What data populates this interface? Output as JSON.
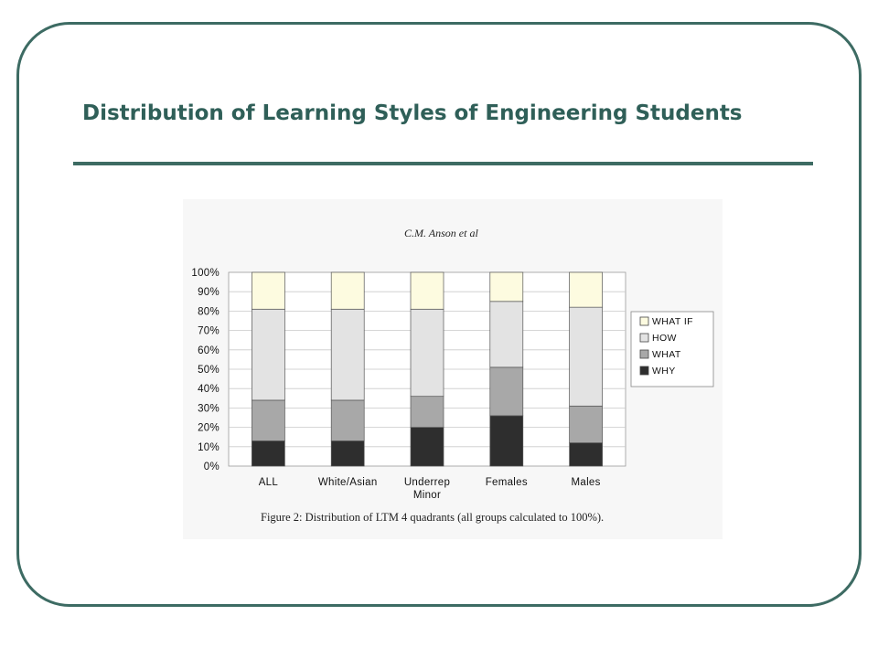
{
  "slide": {
    "title": "Distribution of Learning Styles of Engineering Students",
    "accent_color": "#3d6b63",
    "title_color": "#2f5f58"
  },
  "figure": {
    "author": "C.M. Anson et al",
    "caption": "Figure 2: Distribution of LTM 4 quadrants (all groups calculated to 100%)."
  },
  "chart_data": {
    "type": "bar",
    "stacked": true,
    "title": "",
    "xlabel": "",
    "ylabel": "",
    "ylim": [
      0,
      100
    ],
    "y_ticks": [
      "0%",
      "10%",
      "20%",
      "30%",
      "40%",
      "50%",
      "60%",
      "70%",
      "80%",
      "90%",
      "100%"
    ],
    "grid": true,
    "legend_position": "right",
    "categories": [
      "ALL",
      "White/Asian",
      "Underrep\nMinor",
      "Females",
      "Males"
    ],
    "series": [
      {
        "name": "WHY",
        "color": "#2e2e2e",
        "values": [
          13,
          13,
          20,
          26,
          12
        ]
      },
      {
        "name": "WHAT",
        "color": "#a8a8a8",
        "values": [
          21,
          21,
          16,
          25,
          19
        ]
      },
      {
        "name": "HOW",
        "color": "#e3e3e3",
        "values": [
          47,
          47,
          45,
          34,
          51
        ]
      },
      {
        "name": "WHAT IF",
        "color": "#fdfbe0",
        "values": [
          19,
          19,
          19,
          15,
          18
        ]
      }
    ],
    "legend_order": [
      "WHAT IF",
      "HOW",
      "WHAT",
      "WHY"
    ]
  }
}
